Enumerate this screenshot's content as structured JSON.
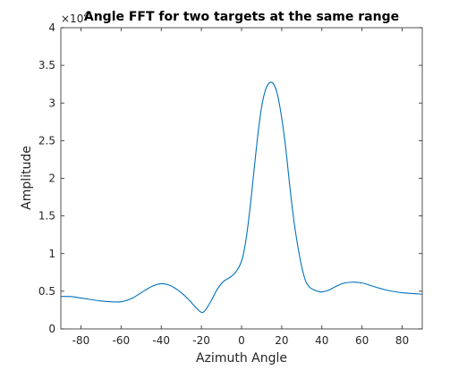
{
  "chart_data": {
    "type": "line",
    "title": "Angle FFT for two targets at the same range",
    "xlabel": "Azimuth Angle",
    "ylabel": "Amplitude",
    "xlim": [
      -90,
      90
    ],
    "ylim": [
      0,
      4
    ],
    "y_multiplier_label": "×10",
    "y_multiplier_exponent": "4",
    "xticks": [
      -80,
      -60,
      -40,
      -20,
      0,
      20,
      40,
      60,
      80
    ],
    "xtick_labels": [
      "-80",
      "-60",
      "-40",
      "-20",
      "0",
      "20",
      "40",
      "60",
      "80"
    ],
    "yticks": [
      0,
      0.5,
      1,
      1.5,
      2,
      2.5,
      3,
      3.5,
      4
    ],
    "ytick_labels": [
      "0",
      "0.5",
      "1",
      "1.5",
      "2",
      "2.5",
      "3",
      "3.5",
      "4"
    ],
    "grid": false,
    "line_color": "#0072BD",
    "series": [
      {
        "x": [
          -90,
          -85,
          -80,
          -75,
          -70,
          -65,
          -60,
          -55,
          -50,
          -45,
          -40,
          -35,
          -30,
          -26,
          -23,
          -20,
          -18,
          -15,
          -12,
          -9,
          -6,
          -3,
          0,
          2,
          4,
          6,
          8,
          10,
          12,
          14,
          16,
          18,
          20,
          22,
          24,
          26,
          28,
          30,
          32,
          34,
          36,
          38,
          40,
          43,
          46,
          50,
          55,
          60,
          65,
          70,
          75,
          80,
          85,
          90
        ],
        "y": [
          0.43,
          0.43,
          0.41,
          0.39,
          0.37,
          0.36,
          0.36,
          0.4,
          0.48,
          0.56,
          0.6,
          0.57,
          0.48,
          0.38,
          0.29,
          0.22,
          0.25,
          0.38,
          0.53,
          0.63,
          0.68,
          0.75,
          0.9,
          1.15,
          1.55,
          2.05,
          2.55,
          2.95,
          3.18,
          3.27,
          3.25,
          3.1,
          2.8,
          2.4,
          1.9,
          1.45,
          1.1,
          0.82,
          0.63,
          0.55,
          0.52,
          0.5,
          0.49,
          0.51,
          0.55,
          0.6,
          0.62,
          0.61,
          0.57,
          0.53,
          0.5,
          0.48,
          0.47,
          0.46
        ]
      }
    ]
  }
}
